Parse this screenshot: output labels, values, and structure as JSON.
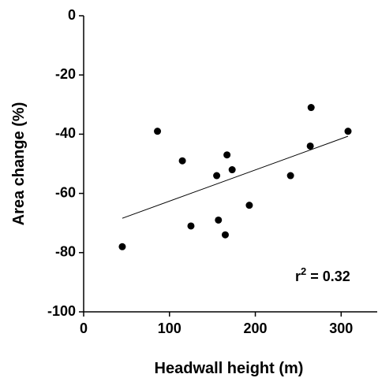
{
  "chart_data": {
    "type": "scatter",
    "x_label": "Headwall height (m)",
    "y_label": "Area change (%)",
    "x": [
      45,
      86,
      115,
      125,
      155,
      157,
      167,
      173,
      165,
      193,
      241,
      265,
      264,
      308
    ],
    "values": [
      -78,
      -39,
      -49,
      -71,
      -54,
      -69,
      -47,
      -52,
      -74,
      -64,
      -54,
      -31,
      -44,
      -39
    ],
    "color": "#000000",
    "trendline": {
      "x": [
        45,
        308
      ],
      "y": [
        -68.4,
        -40.7
      ],
      "color": "#000000"
    },
    "annotation": {
      "base": "r",
      "sup": "2",
      "rest": " = 0.32"
    },
    "xlim": [
      0,
      342
    ],
    "ylim": [
      -100,
      0
    ],
    "xticks": [
      0,
      100,
      200,
      300
    ],
    "yticks": [
      0,
      -20,
      -40,
      -60,
      -80,
      -100
    ],
    "grid": false
  }
}
